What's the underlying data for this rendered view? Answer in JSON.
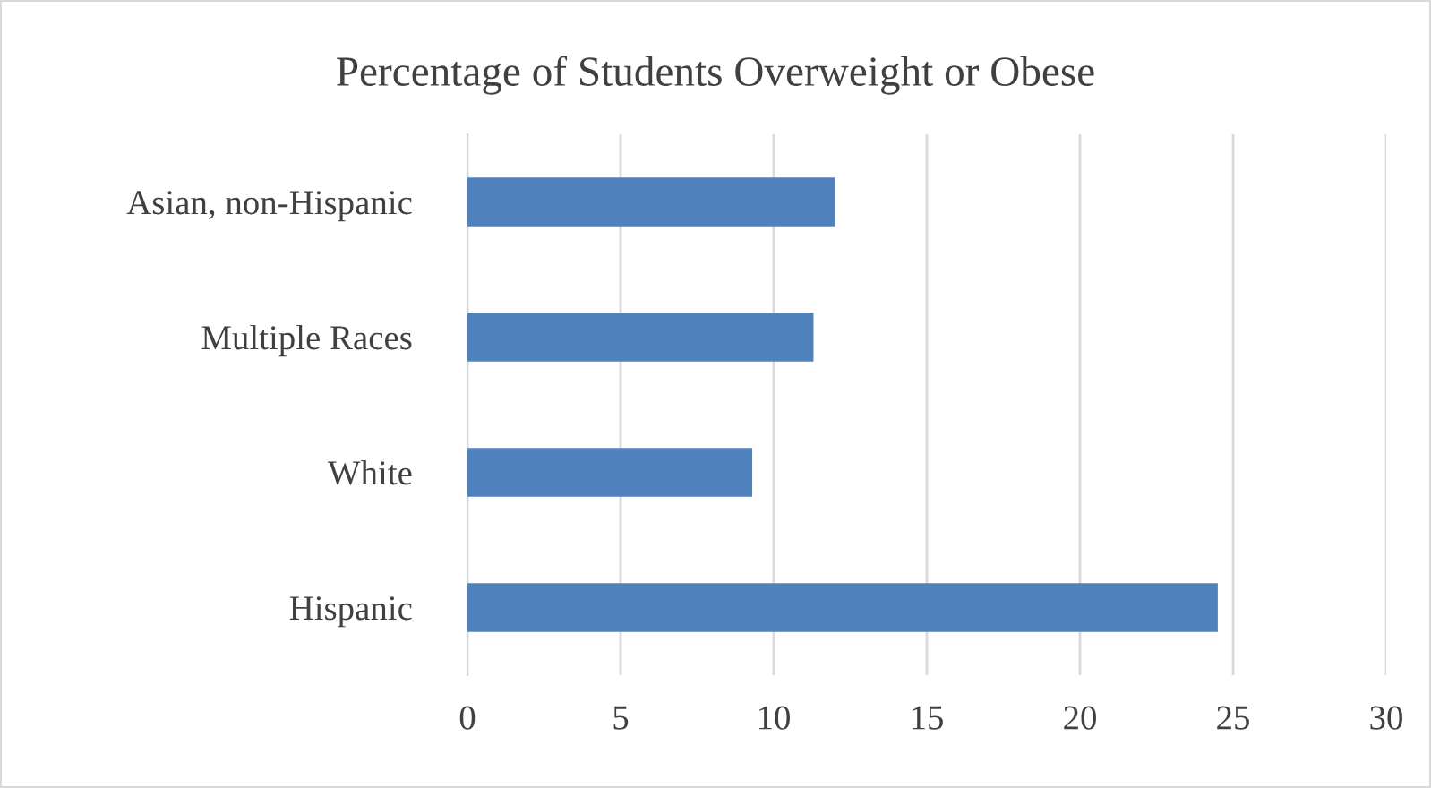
{
  "chart_data": {
    "type": "bar",
    "orientation": "horizontal",
    "title": "Percentage of Students Overweight or Obese",
    "categories": [
      "Asian, non-Hispanic",
      "Multiple Races",
      "White",
      "Hispanic"
    ],
    "values": [
      12.0,
      11.3,
      9.3,
      24.5
    ],
    "color": "#4f81bd",
    "xlim": [
      0,
      30
    ],
    "xticks": [
      0,
      5,
      10,
      15,
      20,
      25,
      30
    ],
    "grid": "x",
    "legend": false
  }
}
